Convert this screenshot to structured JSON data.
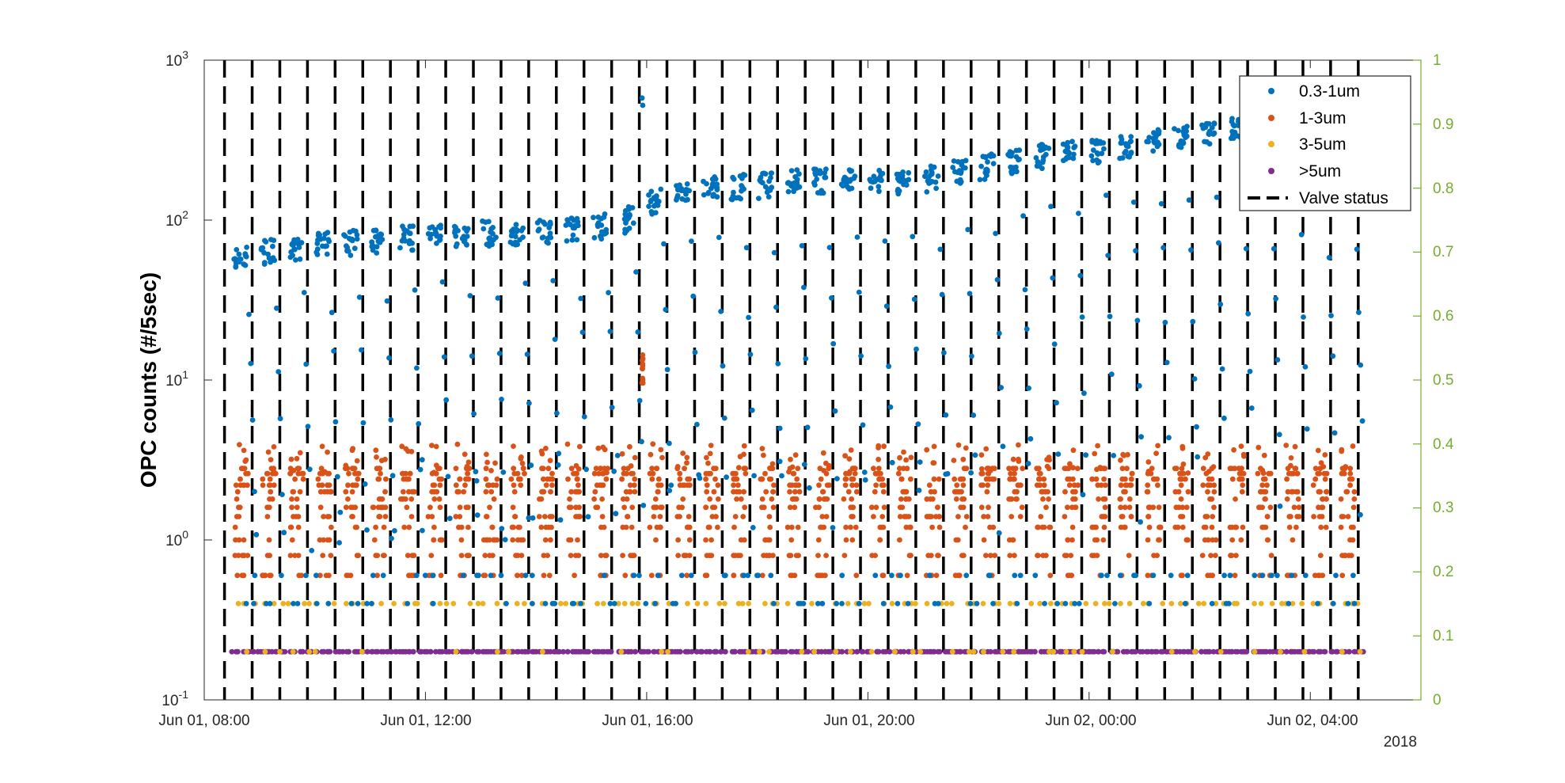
{
  "chart_data": {
    "type": "scatter",
    "ylabel": "OPC counts (#/5sec)",
    "y_scale": "log",
    "ylim": [
      0.1,
      1000
    ],
    "y_ticks": [
      {
        "base": "10",
        "exp": "-1"
      },
      {
        "base": "10",
        "exp": "0"
      },
      {
        "base": "10",
        "exp": "1"
      },
      {
        "base": "10",
        "exp": "2"
      },
      {
        "base": "10",
        "exp": "3"
      }
    ],
    "y_tick_values": [
      0.1,
      1,
      10,
      100,
      1000
    ],
    "y2_ticks": [
      "0",
      "0.1",
      "0.2",
      "0.3",
      "0.4",
      "0.5",
      "0.6",
      "0.7",
      "0.8",
      "0.9",
      "1"
    ],
    "y2_values": [
      0,
      0.1,
      0.2,
      0.3,
      0.4,
      0.5,
      0.6,
      0.7,
      0.8,
      0.9,
      1
    ],
    "y2lim": [
      0,
      1
    ],
    "xlim": [
      "2018-06-01 08:00",
      "2018-06-02 06:00"
    ],
    "x_ticks": [
      "Jun 01, 08:00",
      "Jun 01, 12:00",
      "Jun 01, 16:00",
      "Jun 01, 20:00",
      "Jun 02, 00:00",
      "Jun 02, 04:00"
    ],
    "x_tick_values": [
      "2018-06-01 08:00",
      "2018-06-01 12:00",
      "2018-06-01 16:00",
      "2018-06-01 20:00",
      "2018-06-02 00:00",
      "2018-06-02 04:00"
    ],
    "x_secondary_label": "2018",
    "legend_position": "top-right",
    "series": [
      {
        "name": "0.3-1um",
        "color": "#0072BD",
        "marker": "dot",
        "time": [
          "2018-06-01 08:45",
          "2018-06-01 09:30",
          "2018-06-01 10:30",
          "2018-06-01 11:30",
          "2018-06-01 12:30",
          "2018-06-01 13:30",
          "2018-06-01 14:30",
          "2018-06-01 15:30",
          "2018-06-01 16:15",
          "2018-06-01 17:00",
          "2018-06-01 18:00",
          "2018-06-01 19:00",
          "2018-06-01 20:00",
          "2018-06-01 21:00",
          "2018-06-01 22:00",
          "2018-06-01 23:00",
          "2018-06-02 00:00",
          "2018-06-02 01:00",
          "2018-06-02 02:00",
          "2018-06-02 02:45"
        ],
        "values": [
          60,
          68,
          72,
          78,
          82,
          85,
          88,
          95,
          140,
          160,
          165,
          180,
          175,
          180,
          215,
          250,
          270,
          300,
          350,
          380
        ],
        "outlier_time": [
          "2018-06-01 15:55"
        ],
        "outlier_values": [
          580
        ],
        "low_levels": [
          0.6,
          0.4
        ]
      },
      {
        "name": "1-3um",
        "color": "#D95319",
        "marker": "dot",
        "levels": [
          0.6,
          0.8,
          1.0,
          1.2,
          1.4,
          1.6,
          1.8,
          2.0,
          2.2,
          2.4,
          2.6,
          2.8
        ],
        "max_value": 4,
        "spike_time": [
          "2018-06-01 15:55"
        ],
        "spike_values": [
          15
        ]
      },
      {
        "name": "3-5um",
        "color": "#EDB120",
        "marker": "dot",
        "levels": [
          0.4,
          0.2
        ]
      },
      {
        "name": ">5um",
        "color": "#7E2F8E",
        "marker": "dot",
        "levels": [
          0.2
        ]
      },
      {
        "name": "Valve status",
        "color": "#000000",
        "line_style": "dashed",
        "axis": "right",
        "period_minutes": 30,
        "values": [
          0,
          1
        ]
      }
    ]
  },
  "colors": {
    "axis_left": "#262626",
    "axis_right": "#77AC30"
  }
}
